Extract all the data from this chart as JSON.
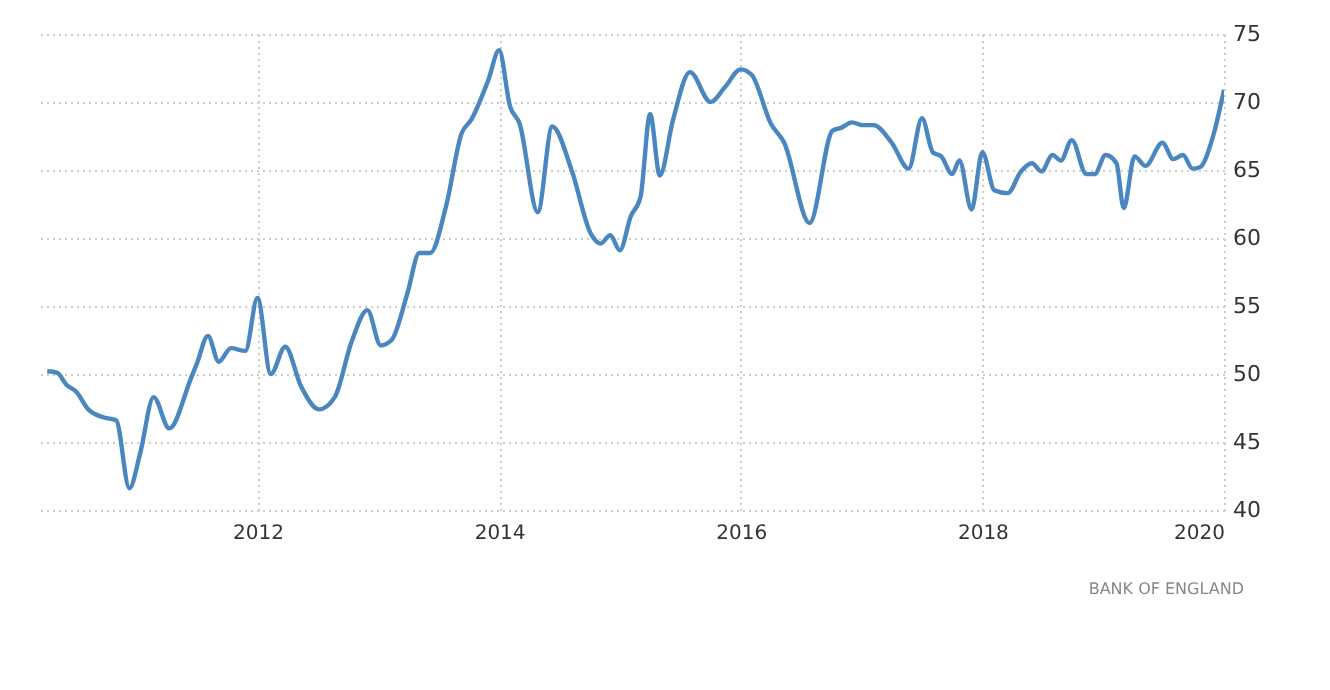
{
  "chart_data": {
    "type": "line",
    "x": [
      2010.26,
      2010.34,
      2010.42,
      2010.5,
      2010.6,
      2010.73,
      2010.83,
      2010.94,
      2011.03,
      2011.14,
      2011.27,
      2011.45,
      2011.5,
      2011.59,
      2011.68,
      2011.78,
      2011.9,
      2012.0,
      2012.11,
      2012.23,
      2012.36,
      2012.51,
      2012.64,
      2012.78,
      2012.91,
      2013.02,
      2013.11,
      2013.24,
      2013.34,
      2013.43,
      2013.56,
      2013.69,
      2013.77,
      2013.91,
      2014.0,
      2014.09,
      2014.17,
      2014.32,
      2014.44,
      2014.6,
      2014.76,
      2014.84,
      2014.92,
      2015.0,
      2015.09,
      2015.17,
      2015.25,
      2015.33,
      2015.44,
      2015.58,
      2015.75,
      2015.87,
      2016.0,
      2016.09,
      2016.25,
      2016.36,
      2016.57,
      2016.76,
      2016.83,
      2016.92,
      2017.01,
      2017.1,
      2017.25,
      2017.39,
      2017.5,
      2017.59,
      2017.66,
      2017.75,
      2017.81,
      2017.91,
      2018.0,
      2018.1,
      2018.21,
      2018.32,
      2018.41,
      2018.49,
      2018.58,
      2018.65,
      2018.74,
      2018.86,
      2018.93,
      2019.02,
      2019.11,
      2019.17,
      2019.26,
      2019.35,
      2019.49,
      2019.58,
      2019.66,
      2019.74,
      2019.8,
      2019.91,
      2020.0
    ],
    "series": [
      {
        "color": "#4a86c0",
        "values": [
          50.2,
          50.1,
          49.2,
          48.7,
          47.4,
          46.8,
          46.6,
          41.6,
          44.2,
          48.3,
          46.0,
          49.7,
          50.8,
          52.8,
          50.9,
          51.9,
          51.7,
          55.6,
          50.0,
          52.0,
          49.1,
          47.4,
          48.3,
          52.4,
          54.7,
          52.1,
          52.5,
          55.9,
          58.9,
          58.9,
          62.3,
          67.7,
          68.7,
          71.6,
          73.8,
          69.7,
          68.4,
          61.9,
          68.2,
          65.0,
          60.3,
          59.6,
          60.2,
          59.1,
          61.6,
          63.0,
          69.1,
          64.6,
          68.7,
          72.2,
          70.0,
          71.1,
          72.4,
          72.0,
          68.4,
          67.0,
          61.1,
          67.9,
          68.1,
          68.5,
          68.3,
          68.3,
          67.0,
          65.1,
          68.8,
          66.3,
          66.0,
          64.7,
          65.7,
          62.1,
          66.3,
          63.5,
          63.3,
          64.9,
          65.5,
          64.9,
          66.1,
          65.7,
          67.2,
          64.7,
          64.7,
          66.1,
          65.5,
          62.2,
          66.0,
          65.3,
          67.0,
          65.8,
          66.1,
          65.1,
          65.2,
          67.5,
          70.9
        ]
      }
    ],
    "xlim": [
      2010.2,
      2020.0
    ],
    "xticks": [
      2012,
      2014,
      2016,
      2018,
      2020
    ],
    "ylim": [
      40,
      75
    ],
    "yticks": [
      40,
      45,
      50,
      55,
      60,
      65,
      70,
      75
    ],
    "grid": true,
    "marker": "none",
    "line_style": "solid",
    "annotations": [
      "BANK OF ENGLAND"
    ]
  }
}
